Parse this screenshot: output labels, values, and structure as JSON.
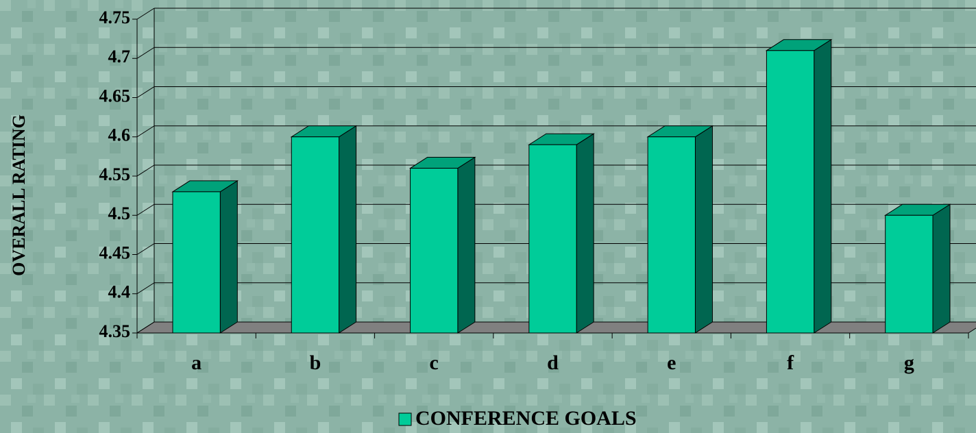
{
  "chart_data": {
    "type": "bar3d",
    "y_label": "OVERALL RATING",
    "categories": [
      "a",
      "b",
      "c",
      "d",
      "e",
      "f",
      "g"
    ],
    "series": [
      {
        "name": "CONFERENCE GOALS",
        "color": "#00cc99",
        "values": [
          4.53,
          4.6,
          4.56,
          4.59,
          4.6,
          4.71,
          4.5
        ]
      }
    ],
    "ylim": [
      4.35,
      4.75
    ],
    "yticks": [
      4.35,
      4.4,
      4.45,
      4.5,
      4.55,
      4.6,
      4.65,
      4.7,
      4.75
    ],
    "grid": true
  }
}
